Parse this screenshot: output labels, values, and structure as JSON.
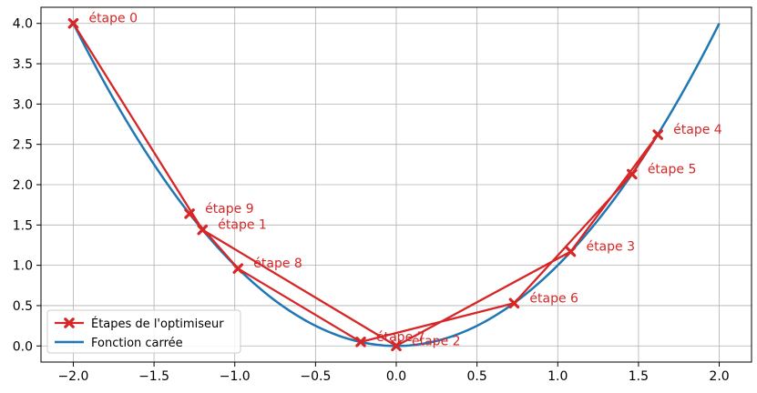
{
  "chart_data": {
    "type": "line",
    "title": "",
    "xlabel": "",
    "ylabel": "",
    "xlim": [
      -2.2,
      2.2
    ],
    "ylim": [
      -0.2,
      4.2
    ],
    "xticks": [
      -2.0,
      -1.5,
      -1.0,
      -0.5,
      0.0,
      0.5,
      1.0,
      1.5,
      2.0
    ],
    "yticks": [
      0.0,
      0.5,
      1.0,
      1.5,
      2.0,
      2.5,
      3.0,
      3.5,
      4.0
    ],
    "xtick_labels": [
      "−2.0",
      "−1.5",
      "−1.0",
      "−0.5",
      "0.0",
      "0.5",
      "1.0",
      "1.5",
      "2.0"
    ],
    "ytick_labels": [
      "0.0",
      "0.5",
      "1.0",
      "1.5",
      "2.0",
      "2.5",
      "3.0",
      "3.5",
      "4.0"
    ],
    "grid": true,
    "legend_position": "lower-left",
    "series": [
      {
        "name": "Étapes de l'optimiseur",
        "kind": "steps",
        "color": "#d62728",
        "marker": "X",
        "points": [
          {
            "label": "étape 0",
            "x": -2.0,
            "y": 4.0
          },
          {
            "label": "étape 1",
            "x": -1.2,
            "y": 1.44
          },
          {
            "label": "étape 2",
            "x": 0.0,
            "y": 0.0
          },
          {
            "label": "étape 3",
            "x": 1.08,
            "y": 1.17
          },
          {
            "label": "étape 4",
            "x": 1.62,
            "y": 2.62
          },
          {
            "label": "étape 5",
            "x": 1.46,
            "y": 2.13
          },
          {
            "label": "étape 6",
            "x": 0.73,
            "y": 0.53
          },
          {
            "label": "étape 7",
            "x": -0.22,
            "y": 0.05
          },
          {
            "label": "étape 8",
            "x": -0.98,
            "y": 0.96
          },
          {
            "label": "étape 9",
            "x": -1.28,
            "y": 1.64
          }
        ]
      },
      {
        "name": "Fonction carrée",
        "kind": "function",
        "color": "#1f77b4",
        "formula": "x^2",
        "domain": [
          -2.0,
          2.0
        ]
      }
    ]
  }
}
